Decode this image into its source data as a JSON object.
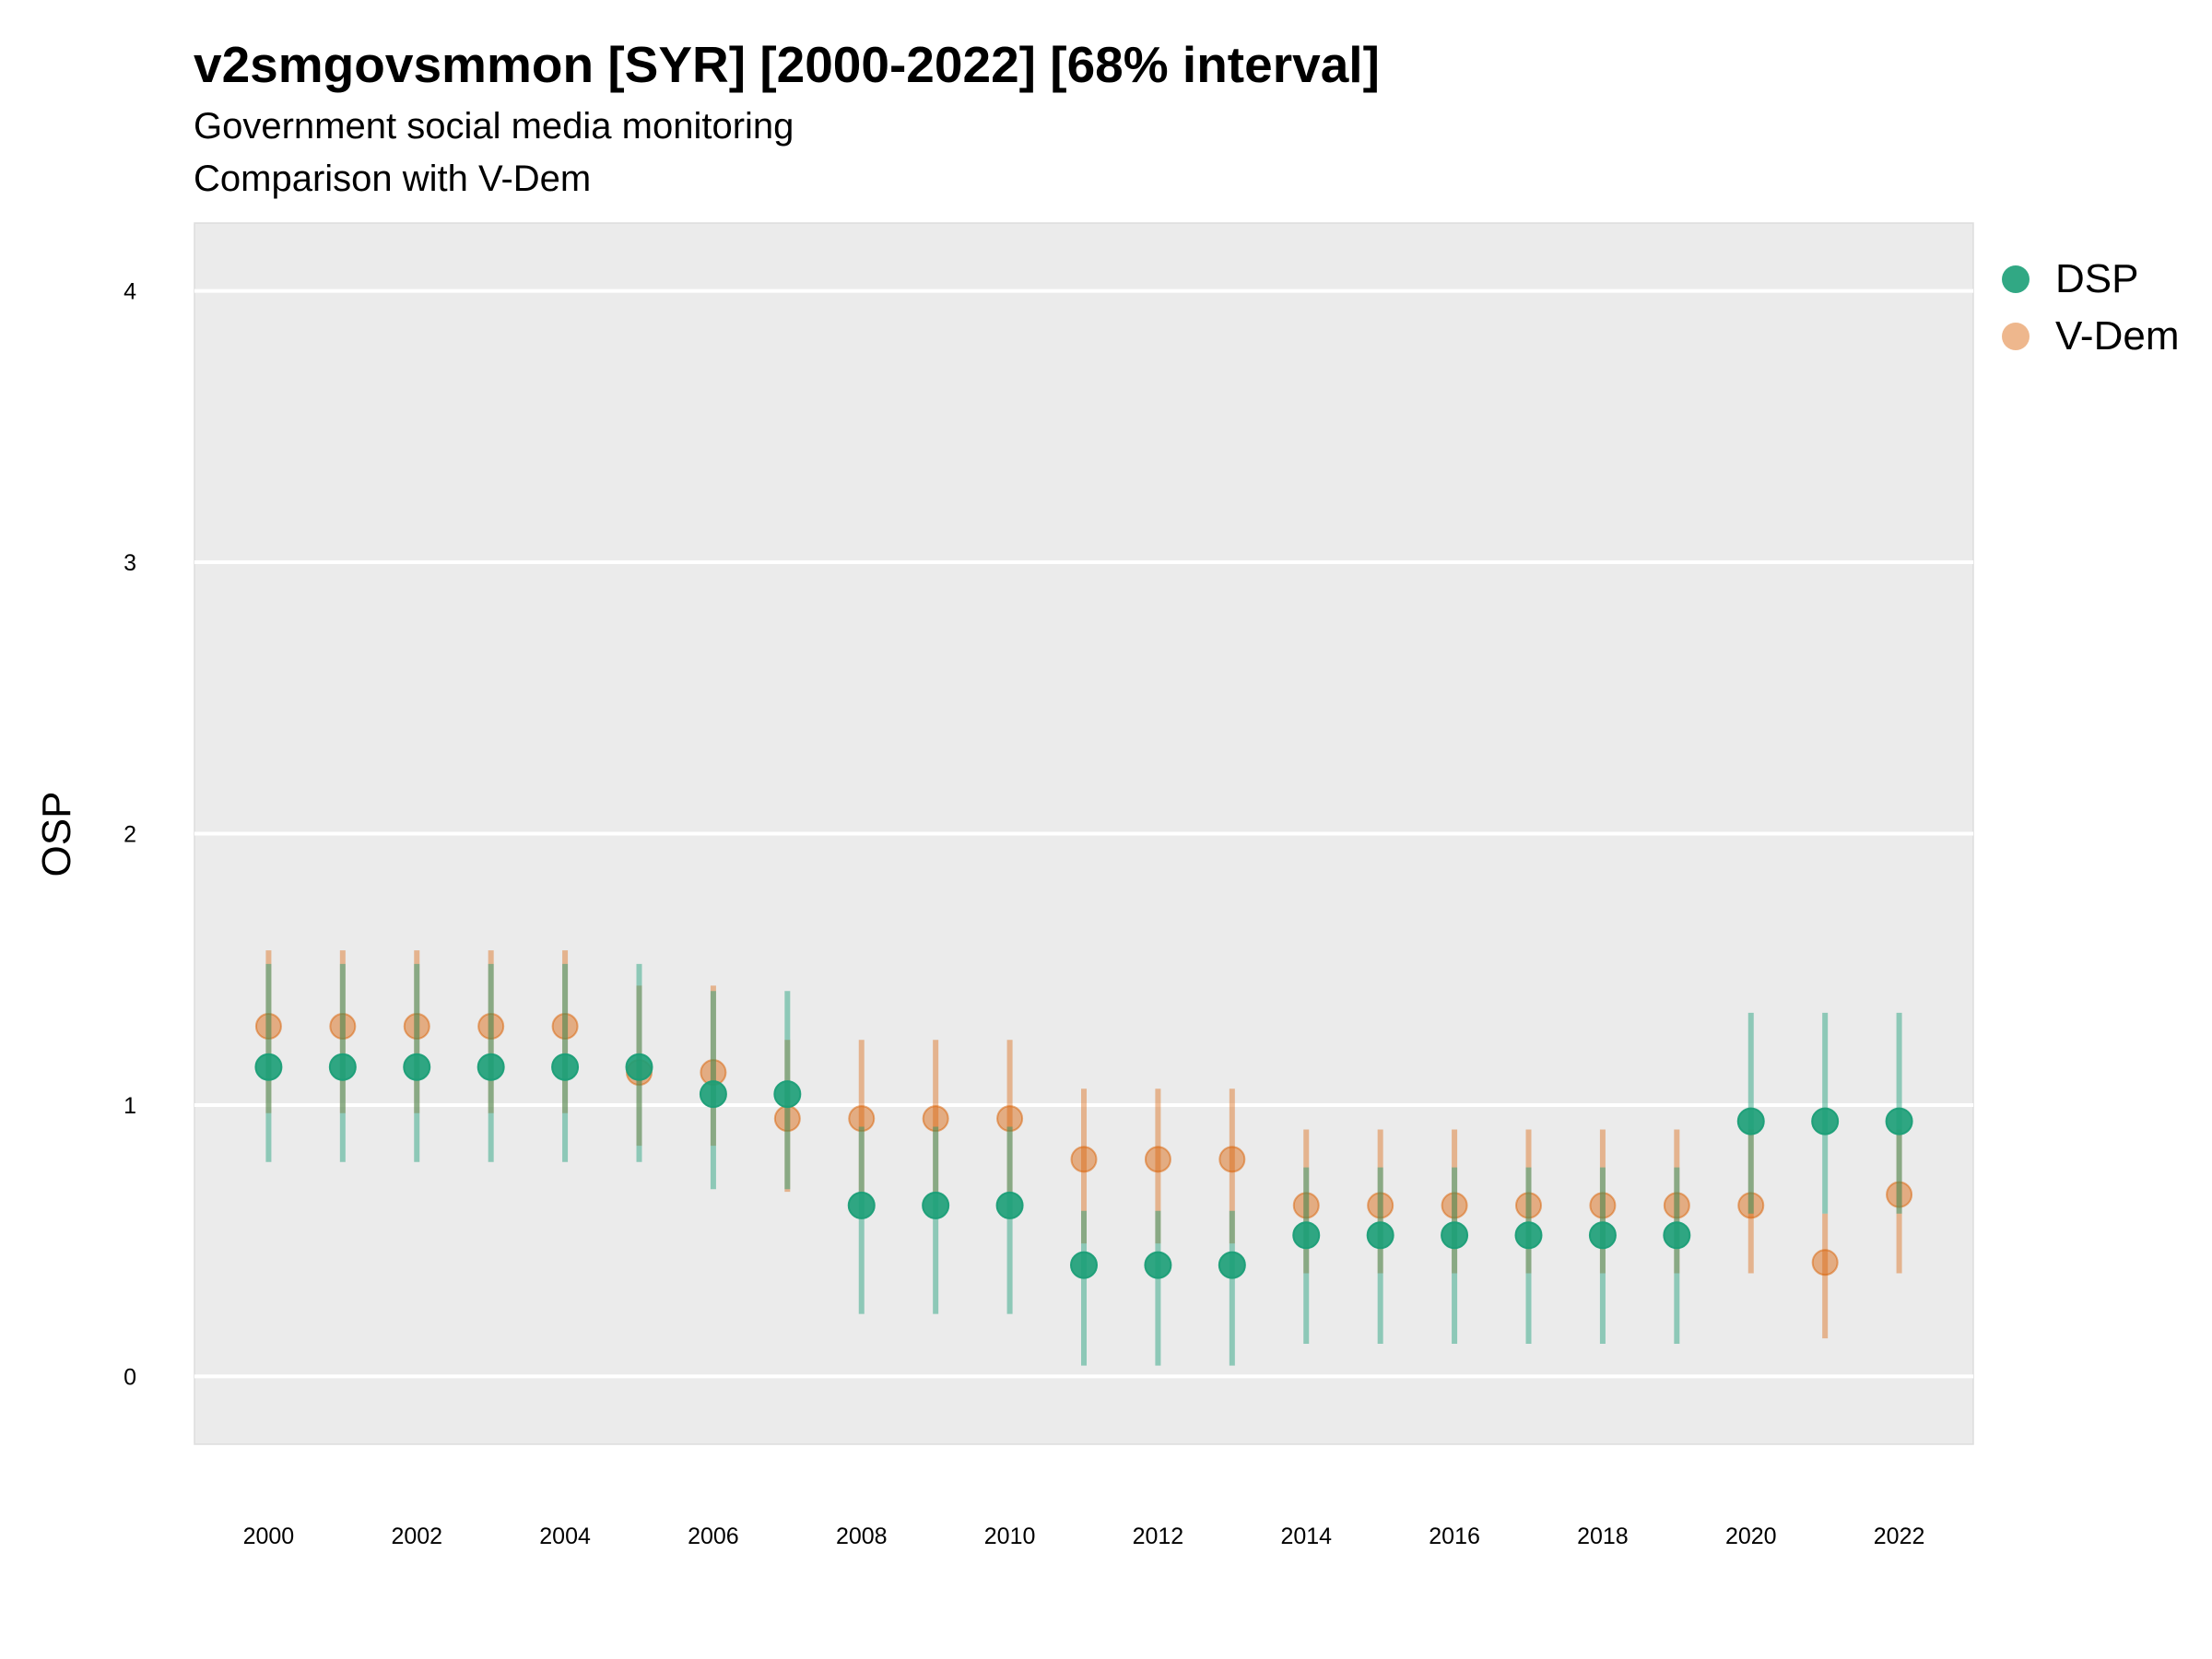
{
  "title": "v2smgovsmmon [SYR] [2000-2022] [68% interval]",
  "subtitle": "Government social media monitoring",
  "caption": "Comparison with V-Dem",
  "chart_data": {
    "type": "scatter",
    "xlabel": "",
    "ylabel": "OSP",
    "xlim": [
      1999,
      2023
    ],
    "ylim": [
      -0.25,
      4.25
    ],
    "yticks": [
      0,
      1,
      2,
      3,
      4
    ],
    "xticks": [
      2000,
      2002,
      2004,
      2006,
      2008,
      2010,
      2012,
      2014,
      2016,
      2018,
      2020,
      2022
    ],
    "grid": true,
    "legend_position": "right",
    "x": [
      2000,
      2001,
      2002,
      2003,
      2004,
      2005,
      2006,
      2007,
      2008,
      2009,
      2010,
      2011,
      2012,
      2013,
      2014,
      2015,
      2016,
      2017,
      2018,
      2019,
      2020,
      2021,
      2022
    ],
    "series": [
      {
        "name": "DSP",
        "color": "#1b9e77",
        "values": [
          1.14,
          1.14,
          1.14,
          1.14,
          1.14,
          1.14,
          1.04,
          1.04,
          0.63,
          0.63,
          0.63,
          0.41,
          0.41,
          0.41,
          0.52,
          0.52,
          0.52,
          0.52,
          0.52,
          0.52,
          0.94,
          0.94,
          0.94
        ],
        "lower": [
          0.79,
          0.79,
          0.79,
          0.79,
          0.79,
          0.79,
          0.69,
          0.69,
          0.23,
          0.23,
          0.23,
          0.04,
          0.04,
          0.04,
          0.12,
          0.12,
          0.12,
          0.12,
          0.12,
          0.12,
          0.6,
          0.6,
          0.6
        ],
        "upper": [
          1.52,
          1.52,
          1.52,
          1.52,
          1.52,
          1.52,
          1.42,
          1.42,
          0.92,
          0.92,
          0.92,
          0.61,
          0.61,
          0.61,
          0.77,
          0.77,
          0.77,
          0.77,
          0.77,
          0.77,
          1.34,
          1.34,
          1.34
        ]
      },
      {
        "name": "V-Dem",
        "color": "#d95f02",
        "values": [
          1.29,
          1.29,
          1.29,
          1.29,
          1.29,
          1.12,
          1.12,
          0.95,
          0.95,
          0.95,
          0.95,
          0.8,
          0.8,
          0.8,
          0.63,
          0.63,
          0.63,
          0.63,
          0.63,
          0.63,
          0.63,
          0.42,
          0.67
        ],
        "lower": [
          0.97,
          0.97,
          0.97,
          0.97,
          0.97,
          0.85,
          0.85,
          0.68,
          0.68,
          0.68,
          0.68,
          0.49,
          0.49,
          0.49,
          0.38,
          0.38,
          0.38,
          0.38,
          0.38,
          0.38,
          0.38,
          0.14,
          0.38
        ],
        "upper": [
          1.57,
          1.57,
          1.57,
          1.57,
          1.57,
          1.44,
          1.44,
          1.24,
          1.24,
          1.24,
          1.24,
          1.06,
          1.06,
          1.06,
          0.91,
          0.91,
          0.91,
          0.91,
          0.91,
          0.91,
          0.91,
          0.6,
          0.91
        ]
      }
    ]
  }
}
